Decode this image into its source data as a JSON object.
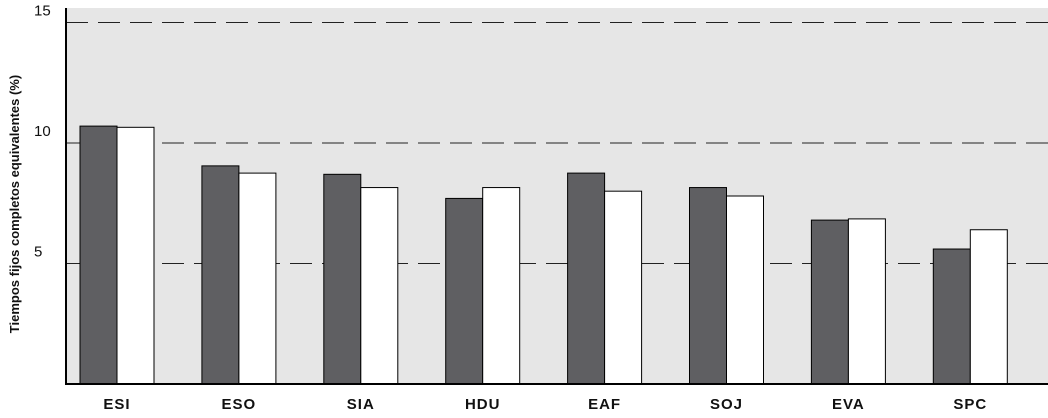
{
  "chart_data": {
    "type": "bar",
    "title": "",
    "xlabel": "",
    "ylabel": "Tiempos fijos completos equivalentes (%)",
    "ylim": [
      0,
      15.6
    ],
    "yticks": [
      5,
      10,
      15
    ],
    "grid": "horizontal dashed at ticks",
    "legend": "none",
    "categories": [
      "ESI",
      "ESO",
      "SIA",
      "HDU",
      "EAF",
      "SOJ",
      "EVA",
      "SPC"
    ],
    "series": [
      {
        "values": [
          10.7,
          9.05,
          8.7,
          7.7,
          8.75,
          8.15,
          6.8,
          5.6
        ]
      },
      {
        "values": [
          10.65,
          8.75,
          8.15,
          8.15,
          8.0,
          7.8,
          6.85,
          6.4
        ]
      }
    ],
    "colors": {
      "plot_background": "#e6e6e6",
      "series_1": "#5f5f62",
      "series_2": "#ffffff",
      "bar_stroke": "#000000",
      "grid": "#222222",
      "axis": "#000000"
    }
  }
}
